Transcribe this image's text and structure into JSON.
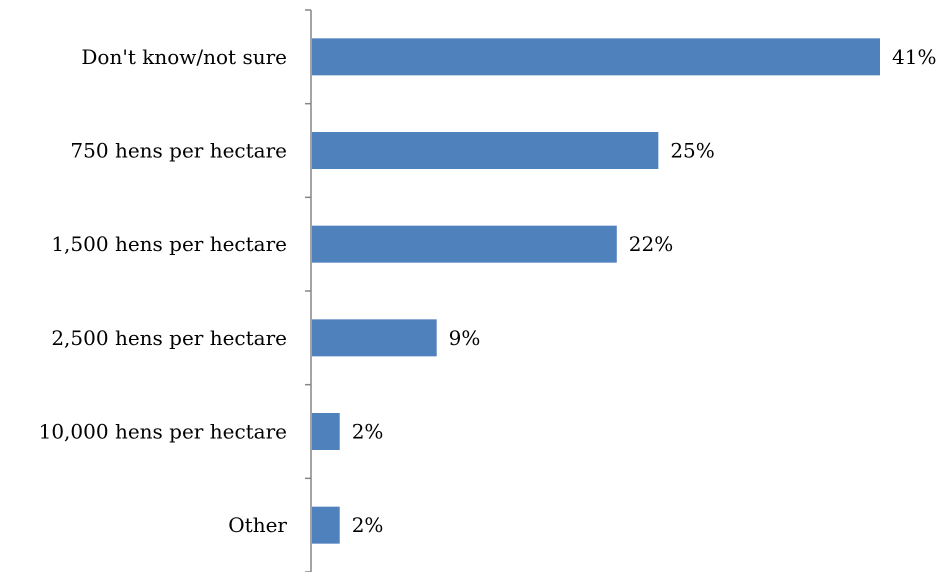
{
  "chart_data": {
    "type": "bar",
    "orientation": "horizontal",
    "categories": [
      "Don't know/not sure",
      "750 hens per hectare",
      "1,500 hens per hectare",
      "2,500 hens per hectare",
      "10,000 hens per hectare",
      "Other"
    ],
    "values": [
      41,
      25,
      22,
      9,
      2,
      2
    ],
    "value_labels": [
      "41%",
      "25%",
      "22%",
      "9%",
      "2%",
      "2%"
    ],
    "unit": "%",
    "xlim": [
      0,
      41
    ],
    "grid": false,
    "legend": "none",
    "colors": {
      "bar": "#4F81BD",
      "axis": "#868686",
      "text": "#000000"
    }
  }
}
